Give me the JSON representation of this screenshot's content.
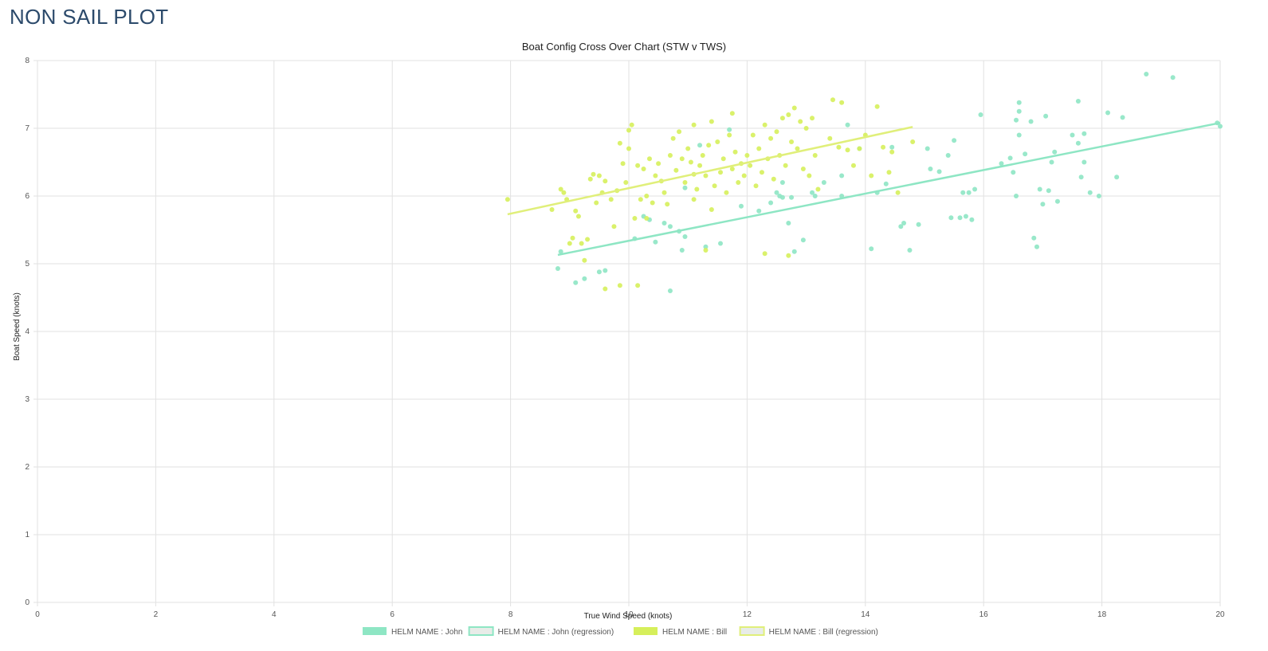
{
  "page": {
    "title": "NON SAIL PLOT"
  },
  "chart_data": {
    "type": "scatter",
    "title": "Boat Config Cross Over Chart (STW v TWS)",
    "xlabel": "True Wind Speed (knots)",
    "ylabel": "Boat Speed (knots)",
    "xlim": [
      0,
      20
    ],
    "ylim": [
      0,
      8
    ],
    "xticks": [
      "0",
      "2",
      "4",
      "6",
      "8",
      "10",
      "12",
      "14",
      "16",
      "18",
      "20"
    ],
    "yticks": [
      "0",
      "1",
      "2",
      "3",
      "4",
      "5",
      "6",
      "7",
      "8"
    ],
    "grid": true,
    "legend_position": "bottom",
    "series": [
      {
        "name": "HELM NAME : John",
        "kind": "scatter",
        "color": "#8ee6c4",
        "points": [
          [
            8.8,
            4.93
          ],
          [
            8.85,
            5.18
          ],
          [
            9.1,
            4.72
          ],
          [
            9.25,
            4.78
          ],
          [
            9.5,
            4.88
          ],
          [
            9.6,
            4.9
          ],
          [
            10.1,
            5.37
          ],
          [
            10.25,
            5.7
          ],
          [
            10.35,
            5.65
          ],
          [
            10.45,
            5.32
          ],
          [
            10.6,
            5.6
          ],
          [
            10.7,
            5.55
          ],
          [
            10.7,
            4.6
          ],
          [
            10.85,
            5.48
          ],
          [
            10.9,
            5.2
          ],
          [
            10.95,
            5.4
          ],
          [
            11.3,
            5.25
          ],
          [
            11.55,
            5.3
          ],
          [
            11.7,
            6.98
          ],
          [
            11.9,
            5.85
          ],
          [
            12.2,
            5.78
          ],
          [
            12.4,
            5.9
          ],
          [
            12.5,
            6.05
          ],
          [
            12.6,
            6.2
          ],
          [
            12.6,
            5.98
          ],
          [
            12.75,
            5.98
          ],
          [
            12.7,
            5.6
          ],
          [
            12.8,
            5.18
          ],
          [
            12.95,
            5.35
          ],
          [
            13.1,
            6.05
          ],
          [
            13.3,
            6.2
          ],
          [
            13.6,
            6.0
          ],
          [
            13.6,
            6.3
          ],
          [
            13.7,
            7.05
          ],
          [
            13.9,
            6.7
          ],
          [
            14.1,
            5.22
          ],
          [
            14.2,
            6.05
          ],
          [
            14.35,
            6.18
          ],
          [
            14.45,
            6.72
          ],
          [
            14.6,
            5.55
          ],
          [
            14.65,
            5.6
          ],
          [
            14.75,
            5.2
          ],
          [
            14.9,
            5.58
          ],
          [
            15.05,
            6.7
          ],
          [
            15.1,
            6.4
          ],
          [
            15.25,
            6.36
          ],
          [
            15.4,
            6.6
          ],
          [
            15.45,
            5.68
          ],
          [
            15.5,
            6.82
          ],
          [
            15.6,
            5.68
          ],
          [
            15.65,
            6.05
          ],
          [
            15.7,
            5.7
          ],
          [
            15.75,
            6.05
          ],
          [
            15.8,
            5.65
          ],
          [
            15.85,
            6.1
          ],
          [
            15.95,
            7.2
          ],
          [
            16.3,
            6.48
          ],
          [
            16.45,
            6.56
          ],
          [
            16.5,
            6.35
          ],
          [
            16.55,
            6.0
          ],
          [
            16.55,
            7.12
          ],
          [
            16.6,
            7.38
          ],
          [
            16.6,
            7.25
          ],
          [
            16.6,
            6.9
          ],
          [
            16.7,
            6.62
          ],
          [
            16.8,
            7.1
          ],
          [
            16.85,
            5.38
          ],
          [
            16.9,
            5.25
          ],
          [
            16.95,
            6.1
          ],
          [
            17.0,
            5.88
          ],
          [
            17.05,
            7.18
          ],
          [
            17.1,
            6.08
          ],
          [
            17.15,
            6.5
          ],
          [
            17.2,
            6.65
          ],
          [
            17.25,
            5.92
          ],
          [
            17.5,
            6.9
          ],
          [
            17.6,
            7.4
          ],
          [
            17.6,
            6.78
          ],
          [
            17.65,
            6.28
          ],
          [
            17.7,
            6.5
          ],
          [
            17.7,
            6.92
          ],
          [
            17.8,
            6.05
          ],
          [
            17.95,
            6.0
          ],
          [
            18.1,
            7.23
          ],
          [
            18.25,
            6.28
          ],
          [
            18.35,
            7.16
          ],
          [
            18.75,
            7.8
          ],
          [
            19.2,
            7.75
          ],
          [
            19.95,
            7.08
          ],
          [
            20.0,
            7.03
          ],
          [
            12.55,
            6.0
          ],
          [
            13.15,
            6.0
          ],
          [
            11.2,
            6.75
          ],
          [
            10.95,
            6.12
          ]
        ]
      },
      {
        "name": "HELM NAME : John (regression)",
        "kind": "line",
        "color": "#8ee6c4",
        "points": [
          [
            8.8,
            5.13
          ],
          [
            20.0,
            7.08
          ]
        ]
      },
      {
        "name": "HELM NAME : Bill",
        "kind": "scatter",
        "color": "#d6ef5b",
        "points": [
          [
            7.95,
            5.95
          ],
          [
            8.7,
            5.8
          ],
          [
            8.85,
            6.1
          ],
          [
            8.9,
            6.05
          ],
          [
            8.95,
            5.95
          ],
          [
            9.0,
            5.3
          ],
          [
            9.05,
            5.38
          ],
          [
            9.1,
            5.78
          ],
          [
            9.15,
            5.7
          ],
          [
            9.2,
            5.3
          ],
          [
            9.25,
            5.05
          ],
          [
            9.3,
            5.36
          ],
          [
            9.35,
            6.25
          ],
          [
            9.4,
            6.32
          ],
          [
            9.45,
            5.9
          ],
          [
            9.5,
            6.3
          ],
          [
            9.55,
            6.05
          ],
          [
            9.6,
            6.22
          ],
          [
            9.6,
            4.63
          ],
          [
            9.7,
            5.95
          ],
          [
            9.75,
            5.55
          ],
          [
            9.8,
            6.08
          ],
          [
            9.85,
            6.78
          ],
          [
            9.9,
            6.48
          ],
          [
            9.95,
            6.2
          ],
          [
            10.0,
            6.7
          ],
          [
            10.0,
            6.97
          ],
          [
            10.05,
            7.05
          ],
          [
            10.1,
            5.67
          ],
          [
            10.15,
            6.45
          ],
          [
            10.2,
            5.95
          ],
          [
            10.25,
            6.4
          ],
          [
            10.3,
            6.0
          ],
          [
            10.3,
            5.67
          ],
          [
            10.35,
            6.55
          ],
          [
            10.4,
            5.9
          ],
          [
            10.45,
            6.3
          ],
          [
            10.5,
            6.48
          ],
          [
            10.55,
            6.22
          ],
          [
            10.6,
            6.05
          ],
          [
            10.65,
            5.88
          ],
          [
            10.7,
            6.6
          ],
          [
            10.75,
            6.85
          ],
          [
            10.8,
            6.38
          ],
          [
            10.85,
            6.95
          ],
          [
            10.9,
            6.55
          ],
          [
            10.95,
            6.2
          ],
          [
            11.0,
            6.7
          ],
          [
            11.05,
            6.5
          ],
          [
            11.1,
            5.95
          ],
          [
            11.1,
            6.32
          ],
          [
            11.15,
            6.1
          ],
          [
            11.2,
            6.45
          ],
          [
            11.25,
            6.6
          ],
          [
            11.3,
            6.3
          ],
          [
            11.35,
            6.75
          ],
          [
            11.4,
            5.8
          ],
          [
            11.45,
            6.15
          ],
          [
            11.5,
            6.8
          ],
          [
            11.55,
            6.35
          ],
          [
            11.6,
            6.55
          ],
          [
            11.65,
            6.05
          ],
          [
            11.7,
            6.9
          ],
          [
            11.75,
            6.4
          ],
          [
            11.8,
            6.65
          ],
          [
            11.85,
            6.2
          ],
          [
            11.9,
            6.48
          ],
          [
            11.95,
            6.3
          ],
          [
            12.0,
            6.6
          ],
          [
            12.05,
            6.45
          ],
          [
            12.1,
            6.9
          ],
          [
            12.15,
            6.15
          ],
          [
            12.2,
            6.7
          ],
          [
            12.25,
            6.35
          ],
          [
            12.3,
            7.05
          ],
          [
            12.35,
            6.55
          ],
          [
            12.4,
            6.85
          ],
          [
            12.45,
            6.25
          ],
          [
            12.5,
            6.95
          ],
          [
            12.55,
            6.6
          ],
          [
            12.6,
            7.15
          ],
          [
            12.65,
            6.45
          ],
          [
            12.7,
            7.2
          ],
          [
            12.75,
            6.8
          ],
          [
            12.8,
            7.3
          ],
          [
            12.85,
            6.7
          ],
          [
            12.9,
            7.1
          ],
          [
            12.95,
            6.4
          ],
          [
            13.0,
            7.0
          ],
          [
            13.05,
            6.3
          ],
          [
            13.1,
            7.15
          ],
          [
            13.15,
            6.6
          ],
          [
            13.2,
            6.1
          ],
          [
            13.4,
            6.85
          ],
          [
            13.45,
            7.42
          ],
          [
            13.55,
            6.72
          ],
          [
            13.6,
            7.38
          ],
          [
            13.7,
            6.68
          ],
          [
            13.8,
            6.45
          ],
          [
            13.9,
            6.7
          ],
          [
            14.0,
            6.9
          ],
          [
            14.1,
            6.3
          ],
          [
            14.2,
            7.32
          ],
          [
            14.3,
            6.72
          ],
          [
            14.4,
            6.35
          ],
          [
            14.45,
            6.65
          ],
          [
            14.55,
            6.05
          ],
          [
            14.8,
            6.8
          ],
          [
            12.3,
            5.15
          ],
          [
            12.7,
            5.12
          ],
          [
            11.3,
            5.2
          ],
          [
            10.15,
            4.68
          ],
          [
            9.85,
            4.68
          ],
          [
            11.1,
            7.05
          ],
          [
            11.4,
            7.1
          ],
          [
            11.75,
            7.22
          ]
        ]
      },
      {
        "name": "HELM NAME : Bill (regression)",
        "kind": "line",
        "color": "#e0ef7a",
        "points": [
          [
            7.95,
            5.73
          ],
          [
            14.8,
            7.02
          ]
        ]
      }
    ]
  }
}
